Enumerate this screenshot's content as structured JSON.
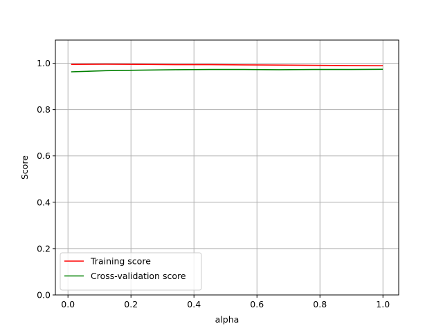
{
  "chart_data": {
    "type": "line",
    "title": "",
    "xlabel": "alpha",
    "ylabel": "Score",
    "xlim": [
      -0.04,
      1.05
    ],
    "ylim": [
      0.0,
      1.1
    ],
    "xticks": [
      0.0,
      0.2,
      0.4,
      0.6,
      0.8,
      1.0
    ],
    "xtick_labels": [
      "0.0",
      "0.2",
      "0.4",
      "0.6",
      "0.8",
      "1.0"
    ],
    "yticks": [
      0.0,
      0.2,
      0.4,
      0.6,
      0.8,
      1.0
    ],
    "ytick_labels": [
      "0.0",
      "0.2",
      "0.4",
      "0.6",
      "0.8",
      "1.0"
    ],
    "grid": true,
    "legend_position": "lower-left",
    "x": [
      0.01,
      0.12,
      0.23,
      0.34,
      0.45,
      0.56,
      0.67,
      0.78,
      0.89,
      1.0
    ],
    "series": [
      {
        "name": "Training score",
        "color": "#ff0000",
        "values": [
          0.995,
          0.996,
          0.995,
          0.994,
          0.994,
          0.993,
          0.992,
          0.991,
          0.99,
          0.989
        ]
      },
      {
        "name": "Cross-validation score",
        "color": "#008000",
        "values": [
          0.963,
          0.968,
          0.97,
          0.972,
          0.973,
          0.973,
          0.972,
          0.973,
          0.973,
          0.974
        ]
      }
    ]
  }
}
